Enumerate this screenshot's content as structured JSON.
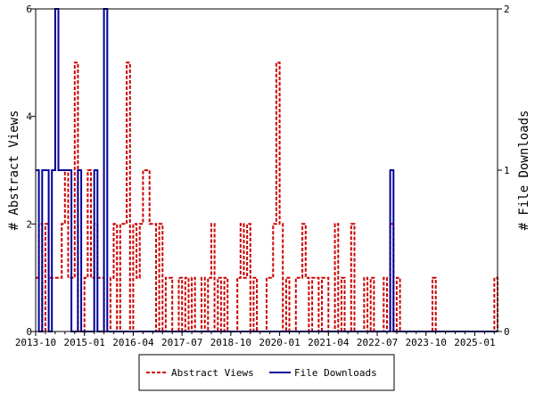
{
  "chart_data": {
    "type": "line",
    "x_tick_labels": [
      "2013-10",
      "2015-01",
      "2016-04",
      "2017-07",
      "2018-10",
      "2020-01",
      "2021-04",
      "2022-07",
      "2023-10",
      "2025-01"
    ],
    "y_left": {
      "label": "# Abstract Views",
      "lim": [
        0,
        6
      ],
      "ticks": [
        0,
        2,
        4,
        6
      ]
    },
    "y_right": {
      "label": "# File Downloads",
      "lim": [
        0,
        2
      ],
      "ticks": [
        0,
        1,
        2
      ]
    },
    "legend_position": "bottom-center",
    "grid": false,
    "series": [
      {
        "name": "Abstract Views",
        "axis": "left",
        "color": "#cc0000",
        "style": "dashed",
        "points": [
          [
            "2013-10",
            1
          ],
          [
            "2013-11",
            2
          ],
          [
            "2013-12",
            0
          ],
          [
            "2014-01",
            2
          ],
          [
            "2014-02",
            1
          ],
          [
            "2014-03",
            1
          ],
          [
            "2014-04",
            1
          ],
          [
            "2014-05",
            1
          ],
          [
            "2014-06",
            2
          ],
          [
            "2014-07",
            3
          ],
          [
            "2014-08",
            1
          ],
          [
            "2014-09",
            1
          ],
          [
            "2014-10",
            5
          ],
          [
            "2014-11",
            0
          ],
          [
            "2014-12",
            0
          ],
          [
            "2015-01",
            1
          ],
          [
            "2015-02",
            3
          ],
          [
            "2015-03",
            1
          ],
          [
            "2015-04",
            2
          ],
          [
            "2015-05",
            1
          ],
          [
            "2015-06",
            1
          ],
          [
            "2015-07",
            0
          ],
          [
            "2015-08",
            0
          ],
          [
            "2015-09",
            1
          ],
          [
            "2015-10",
            2
          ],
          [
            "2015-11",
            0
          ],
          [
            "2015-12",
            2
          ],
          [
            "2016-01",
            2
          ],
          [
            "2016-02",
            5
          ],
          [
            "2016-03",
            0
          ],
          [
            "2016-04",
            2
          ],
          [
            "2016-05",
            1
          ],
          [
            "2016-06",
            2
          ],
          [
            "2016-07",
            3
          ],
          [
            "2016-08",
            3
          ],
          [
            "2016-09",
            2
          ],
          [
            "2016-10",
            2
          ],
          [
            "2016-11",
            0
          ],
          [
            "2016-12",
            2
          ],
          [
            "2017-01",
            0
          ],
          [
            "2017-02",
            1
          ],
          [
            "2017-03",
            1
          ],
          [
            "2017-04",
            0
          ],
          [
            "2017-05",
            0
          ],
          [
            "2017-06",
            1
          ],
          [
            "2017-07",
            0
          ],
          [
            "2017-08",
            1
          ],
          [
            "2017-09",
            0
          ],
          [
            "2017-10",
            1
          ],
          [
            "2017-11",
            0
          ],
          [
            "2017-12",
            0
          ],
          [
            "2018-01",
            1
          ],
          [
            "2018-02",
            0
          ],
          [
            "2018-03",
            1
          ],
          [
            "2018-04",
            2
          ],
          [
            "2018-05",
            0
          ],
          [
            "2018-06",
            1
          ],
          [
            "2018-07",
            0
          ],
          [
            "2018-08",
            1
          ],
          [
            "2018-09",
            0
          ],
          [
            "2018-10",
            0
          ],
          [
            "2018-11",
            0
          ],
          [
            "2018-12",
            1
          ],
          [
            "2019-01",
            2
          ],
          [
            "2019-02",
            1
          ],
          [
            "2019-03",
            2
          ],
          [
            "2019-04",
            0
          ],
          [
            "2019-05",
            1
          ],
          [
            "2019-06",
            0
          ],
          [
            "2019-07",
            0
          ],
          [
            "2019-08",
            0
          ],
          [
            "2019-09",
            1
          ],
          [
            "2019-10",
            1
          ],
          [
            "2019-11",
            2
          ],
          [
            "2019-12",
            5
          ],
          [
            "2020-01",
            2
          ],
          [
            "2020-02",
            0
          ],
          [
            "2020-03",
            1
          ],
          [
            "2020-04",
            0
          ],
          [
            "2020-05",
            0
          ],
          [
            "2020-06",
            1
          ],
          [
            "2020-07",
            1
          ],
          [
            "2020-08",
            2
          ],
          [
            "2020-09",
            1
          ],
          [
            "2020-10",
            0
          ],
          [
            "2020-11",
            1
          ],
          [
            "2020-12",
            1
          ],
          [
            "2021-01",
            0
          ],
          [
            "2021-02",
            1
          ],
          [
            "2021-03",
            1
          ],
          [
            "2021-04",
            0
          ],
          [
            "2021-05",
            0
          ],
          [
            "2021-06",
            2
          ],
          [
            "2021-07",
            0
          ],
          [
            "2021-08",
            1
          ],
          [
            "2021-09",
            0
          ],
          [
            "2021-10",
            0
          ],
          [
            "2021-11",
            2
          ],
          [
            "2021-12",
            0
          ],
          [
            "2022-01",
            0
          ],
          [
            "2022-02",
            0
          ],
          [
            "2022-03",
            1
          ],
          [
            "2022-04",
            0
          ],
          [
            "2022-05",
            1
          ],
          [
            "2022-06",
            0
          ],
          [
            "2022-07",
            0
          ],
          [
            "2022-08",
            0
          ],
          [
            "2022-09",
            1
          ],
          [
            "2022-10",
            0
          ],
          [
            "2022-11",
            2
          ],
          [
            "2022-12",
            0
          ],
          [
            "2023-01",
            1
          ],
          [
            "2023-02",
            0
          ],
          [
            "2023-03",
            0
          ],
          [
            "2023-04",
            0
          ],
          [
            "2023-05",
            0
          ],
          [
            "2023-06",
            0
          ],
          [
            "2023-07",
            0
          ],
          [
            "2023-08",
            0
          ],
          [
            "2023-09",
            0
          ],
          [
            "2023-10",
            0
          ],
          [
            "2023-11",
            0
          ],
          [
            "2023-12",
            1
          ],
          [
            "2024-01",
            0
          ],
          [
            "2024-02",
            0
          ],
          [
            "2024-03",
            0
          ],
          [
            "2024-04",
            0
          ],
          [
            "2024-05",
            0
          ],
          [
            "2024-06",
            0
          ],
          [
            "2024-07",
            0
          ],
          [
            "2024-08",
            0
          ],
          [
            "2024-09",
            0
          ],
          [
            "2024-10",
            0
          ],
          [
            "2024-11",
            0
          ],
          [
            "2024-12",
            0
          ],
          [
            "2025-01",
            0
          ],
          [
            "2025-02",
            0
          ],
          [
            "2025-03",
            0
          ],
          [
            "2025-04",
            0
          ],
          [
            "2025-05",
            0
          ],
          [
            "2025-06",
            0
          ],
          [
            "2025-07",
            1
          ],
          [
            "2025-08",
            0
          ]
        ]
      },
      {
        "name": "File Downloads",
        "axis": "right",
        "color": "#000099",
        "style": "solid",
        "points": [
          [
            "2013-10",
            1
          ],
          [
            "2013-11",
            0
          ],
          [
            "2013-12",
            1
          ],
          [
            "2014-01",
            1
          ],
          [
            "2014-02",
            0
          ],
          [
            "2014-03",
            1
          ],
          [
            "2014-04",
            2
          ],
          [
            "2014-05",
            1
          ],
          [
            "2014-06",
            1
          ],
          [
            "2014-07",
            1
          ],
          [
            "2014-08",
            1
          ],
          [
            "2014-09",
            0
          ],
          [
            "2014-10",
            0
          ],
          [
            "2014-11",
            1
          ],
          [
            "2014-12",
            0
          ],
          [
            "2015-01",
            0
          ],
          [
            "2015-02",
            0
          ],
          [
            "2015-03",
            0
          ],
          [
            "2015-04",
            1
          ],
          [
            "2015-05",
            0
          ],
          [
            "2015-06",
            0
          ],
          [
            "2015-07",
            2
          ],
          [
            "2015-08",
            0
          ],
          [
            "2015-09",
            0
          ],
          [
            "2015-10",
            0
          ],
          [
            "2015-11",
            0
          ],
          [
            "2015-12",
            0
          ],
          [
            "2016-01",
            0
          ],
          [
            "2016-02",
            0
          ],
          [
            "2016-03",
            0
          ],
          [
            "2016-04",
            0
          ],
          [
            "2016-05",
            0
          ],
          [
            "2016-06",
            0
          ],
          [
            "2016-07",
            0
          ],
          [
            "2016-08",
            0
          ],
          [
            "2016-09",
            0
          ],
          [
            "2016-10",
            0
          ],
          [
            "2016-11",
            0
          ],
          [
            "2016-12",
            0
          ],
          [
            "2017-01",
            0
          ],
          [
            "2017-02",
            0
          ],
          [
            "2017-03",
            0
          ],
          [
            "2017-04",
            0
          ],
          [
            "2017-05",
            0
          ],
          [
            "2017-06",
            0
          ],
          [
            "2017-07",
            0
          ],
          [
            "2017-08",
            0
          ],
          [
            "2017-09",
            0
          ],
          [
            "2017-10",
            0
          ],
          [
            "2017-11",
            0
          ],
          [
            "2017-12",
            0
          ],
          [
            "2018-01",
            0
          ],
          [
            "2018-02",
            0
          ],
          [
            "2018-03",
            0
          ],
          [
            "2018-04",
            0
          ],
          [
            "2018-05",
            0
          ],
          [
            "2018-06",
            0
          ],
          [
            "2018-07",
            0
          ],
          [
            "2018-08",
            0
          ],
          [
            "2018-09",
            0
          ],
          [
            "2018-10",
            0
          ],
          [
            "2018-11",
            0
          ],
          [
            "2018-12",
            0
          ],
          [
            "2019-01",
            0
          ],
          [
            "2019-02",
            0
          ],
          [
            "2019-03",
            0
          ],
          [
            "2019-04",
            0
          ],
          [
            "2019-05",
            0
          ],
          [
            "2019-06",
            0
          ],
          [
            "2019-07",
            0
          ],
          [
            "2019-08",
            0
          ],
          [
            "2019-09",
            0
          ],
          [
            "2019-10",
            0
          ],
          [
            "2019-11",
            0
          ],
          [
            "2019-12",
            0
          ],
          [
            "2020-01",
            0
          ],
          [
            "2020-02",
            0
          ],
          [
            "2020-03",
            0
          ],
          [
            "2020-04",
            0
          ],
          [
            "2020-05",
            0
          ],
          [
            "2020-06",
            0
          ],
          [
            "2020-07",
            0
          ],
          [
            "2020-08",
            0
          ],
          [
            "2020-09",
            0
          ],
          [
            "2020-10",
            0
          ],
          [
            "2020-11",
            0
          ],
          [
            "2020-12",
            0
          ],
          [
            "2021-01",
            0
          ],
          [
            "2021-02",
            0
          ],
          [
            "2021-03",
            0
          ],
          [
            "2021-04",
            0
          ],
          [
            "2021-05",
            0
          ],
          [
            "2021-06",
            0
          ],
          [
            "2021-07",
            0
          ],
          [
            "2021-08",
            0
          ],
          [
            "2021-09",
            0
          ],
          [
            "2021-10",
            0
          ],
          [
            "2021-11",
            0
          ],
          [
            "2021-12",
            0
          ],
          [
            "2022-01",
            0
          ],
          [
            "2022-02",
            0
          ],
          [
            "2022-03",
            0
          ],
          [
            "2022-04",
            0
          ],
          [
            "2022-05",
            0
          ],
          [
            "2022-06",
            0
          ],
          [
            "2022-07",
            0
          ],
          [
            "2022-08",
            0
          ],
          [
            "2022-09",
            0
          ],
          [
            "2022-10",
            0
          ],
          [
            "2022-11",
            1
          ],
          [
            "2022-12",
            0
          ],
          [
            "2023-01",
            0
          ],
          [
            "2023-02",
            0
          ],
          [
            "2023-03",
            0
          ],
          [
            "2023-04",
            0
          ],
          [
            "2023-05",
            0
          ],
          [
            "2023-06",
            0
          ],
          [
            "2023-07",
            0
          ],
          [
            "2023-08",
            0
          ],
          [
            "2023-09",
            0
          ],
          [
            "2023-10",
            0
          ],
          [
            "2023-11",
            0
          ],
          [
            "2023-12",
            0
          ],
          [
            "2024-01",
            0
          ],
          [
            "2024-02",
            0
          ],
          [
            "2024-03",
            0
          ],
          [
            "2024-04",
            0
          ],
          [
            "2024-05",
            0
          ],
          [
            "2024-06",
            0
          ],
          [
            "2024-07",
            0
          ],
          [
            "2024-08",
            0
          ],
          [
            "2024-09",
            0
          ],
          [
            "2024-10",
            0
          ],
          [
            "2024-11",
            0
          ],
          [
            "2024-12",
            0
          ],
          [
            "2025-01",
            0
          ],
          [
            "2025-02",
            0
          ],
          [
            "2025-03",
            0
          ],
          [
            "2025-04",
            0
          ],
          [
            "2025-05",
            0
          ],
          [
            "2025-06",
            0
          ],
          [
            "2025-07",
            0
          ],
          [
            "2025-08",
            0
          ]
        ]
      }
    ]
  }
}
